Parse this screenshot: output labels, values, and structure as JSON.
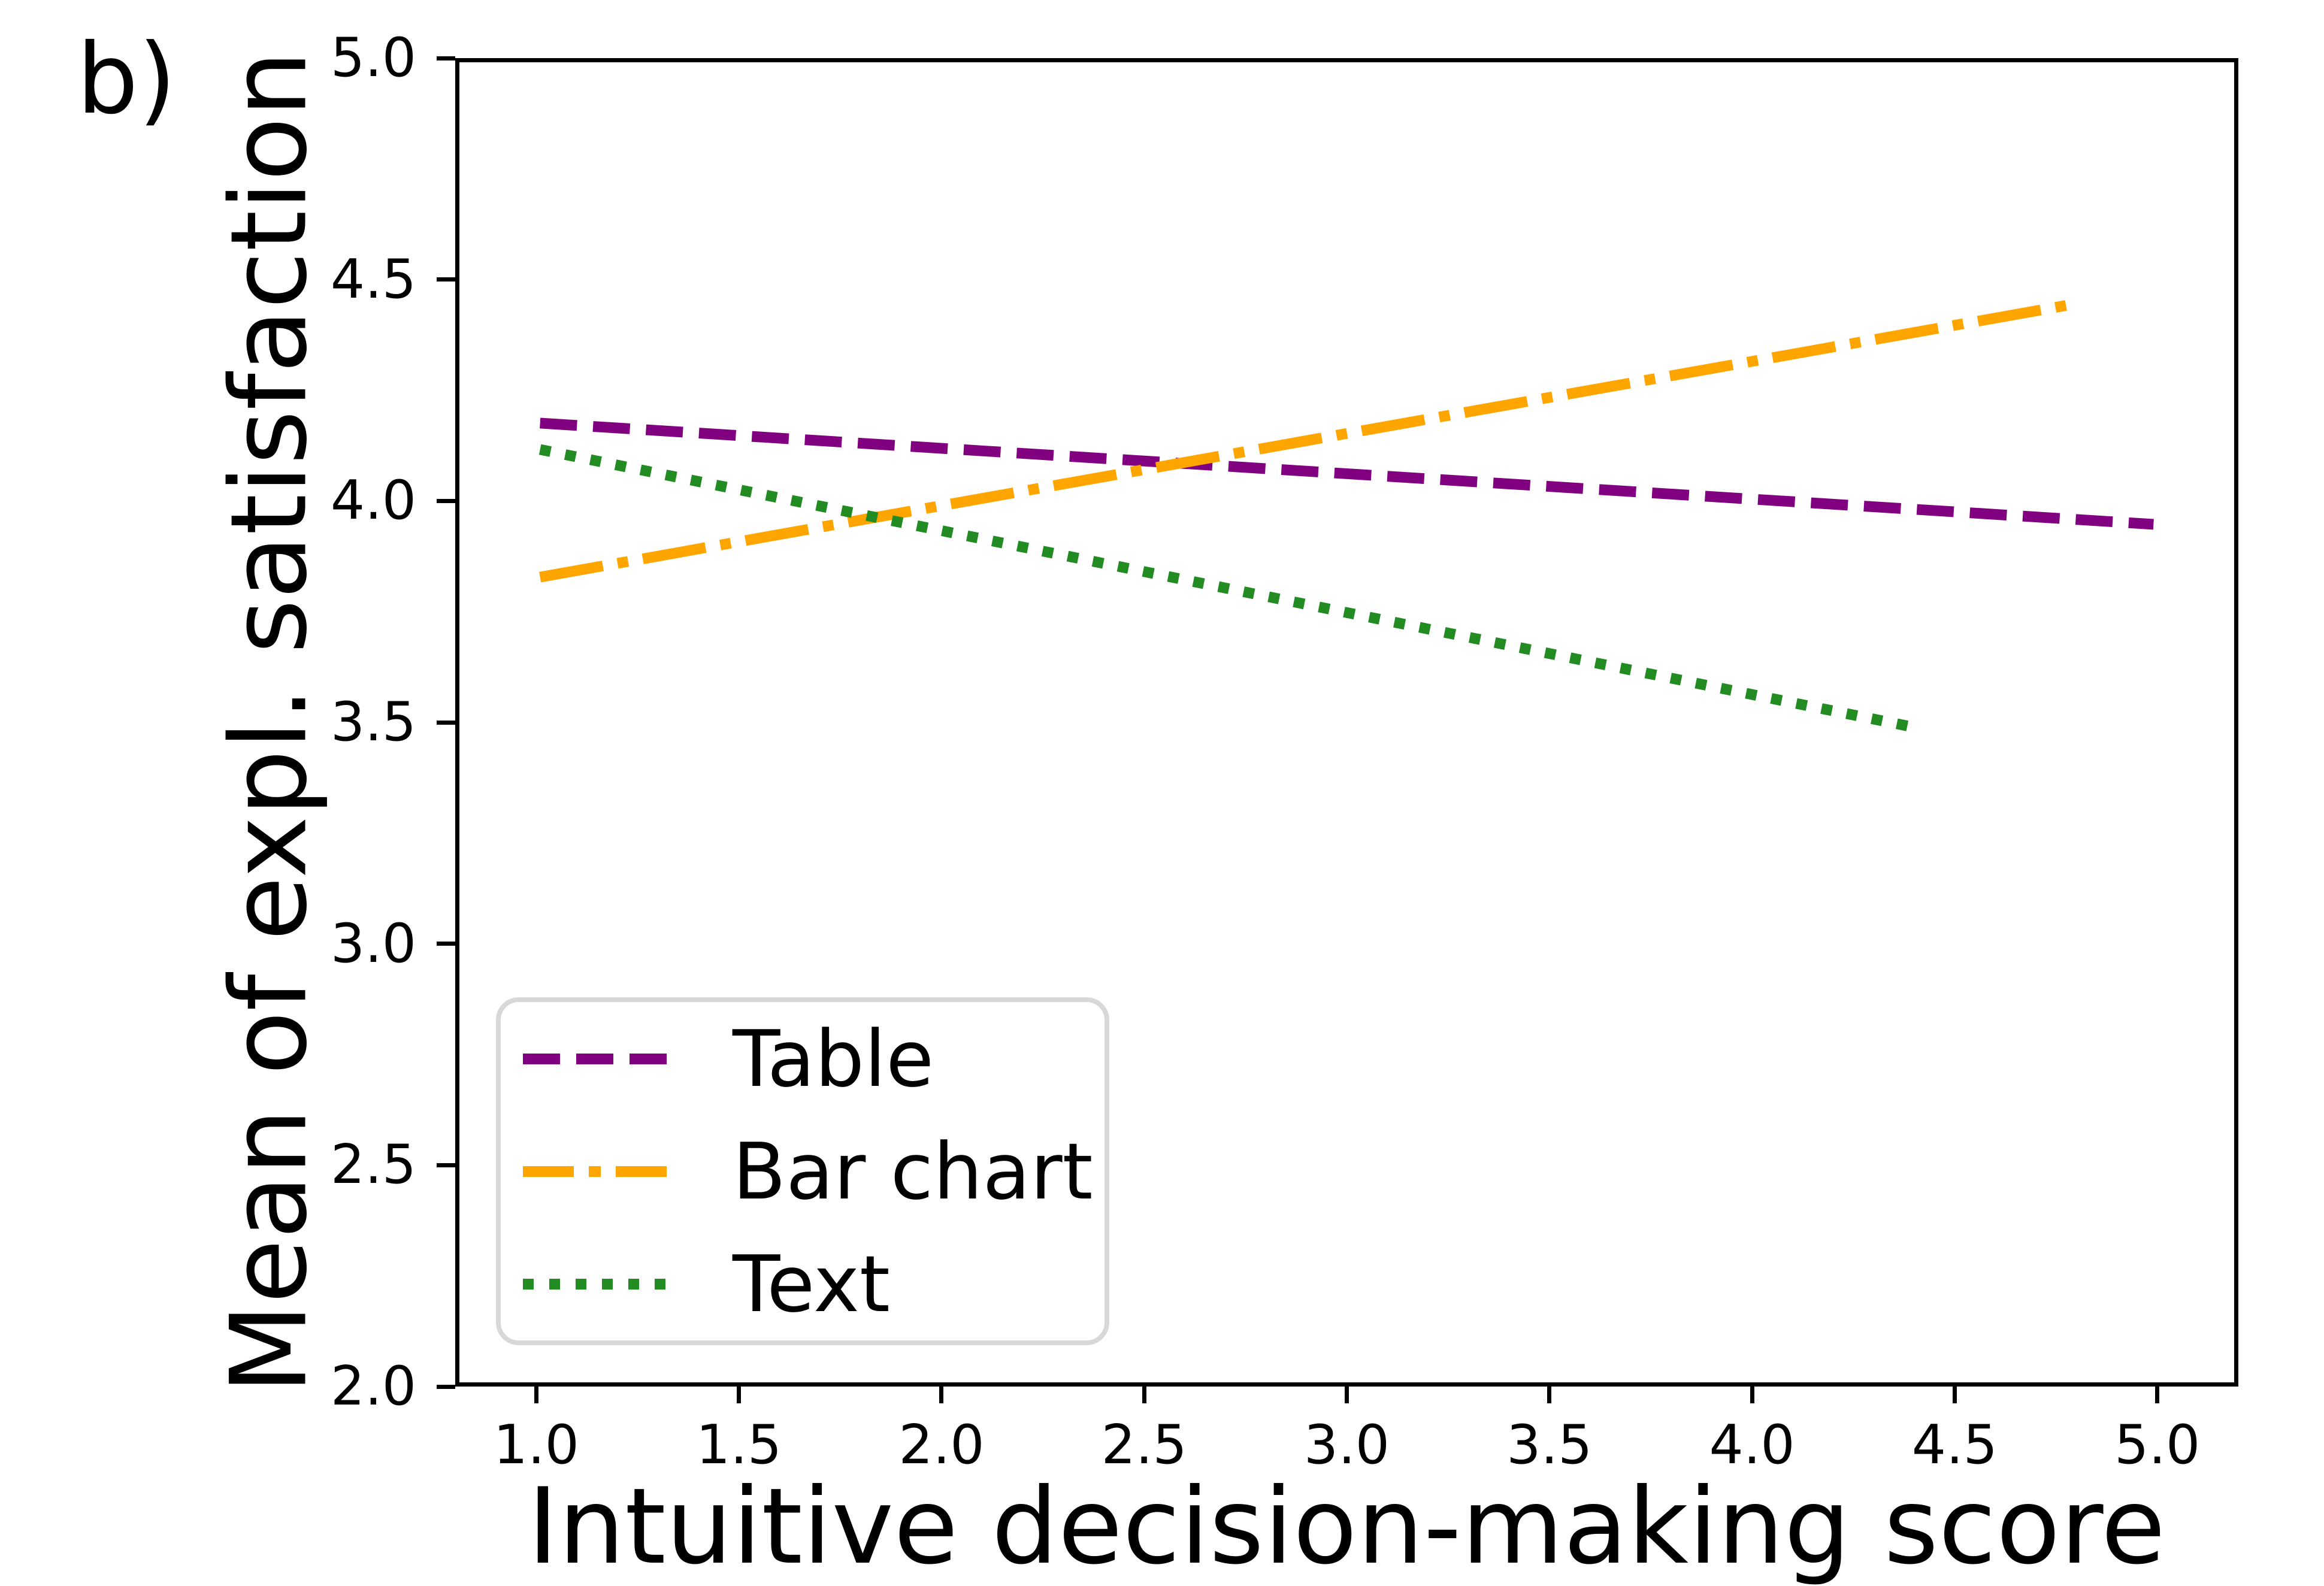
{
  "panel_label": "b)",
  "chart_data": {
    "type": "line",
    "title": "",
    "xlabel": "Intuitive decision-making score",
    "ylabel": "Mean of expl. satisfaction",
    "xlim": [
      0.8,
      5.2
    ],
    "ylim": [
      2.0,
      5.0
    ],
    "xticks": [
      1.0,
      1.5,
      2.0,
      2.5,
      3.0,
      3.5,
      4.0,
      4.5,
      5.0
    ],
    "yticks": [
      2.0,
      2.5,
      3.0,
      3.5,
      4.0,
      4.5,
      5.0
    ],
    "tick_decimals": 1,
    "grid": false,
    "legend_position": "lower left",
    "series": [
      {
        "name": "Table",
        "color": "#800080",
        "linestyle": "dashed",
        "dash_svg": "62 27",
        "legend_dash": "62 27",
        "x": [
          1.0,
          5.0
        ],
        "y": [
          4.18,
          3.95
        ]
      },
      {
        "name": "Bar chart",
        "color": "#FFA500",
        "linestyle": "dashdot",
        "dash_svg": "107 25 18 25",
        "legend_dash": "85 25 20 25",
        "x": [
          1.0,
          4.8
        ],
        "y": [
          3.83,
          4.45
        ]
      },
      {
        "name": "Text",
        "color": "#228B22",
        "linestyle": "dotted",
        "dash_svg": "18 25",
        "legend_dash": "18 26",
        "x": [
          1.0,
          4.4
        ],
        "y": [
          4.12,
          3.49
        ]
      }
    ]
  }
}
